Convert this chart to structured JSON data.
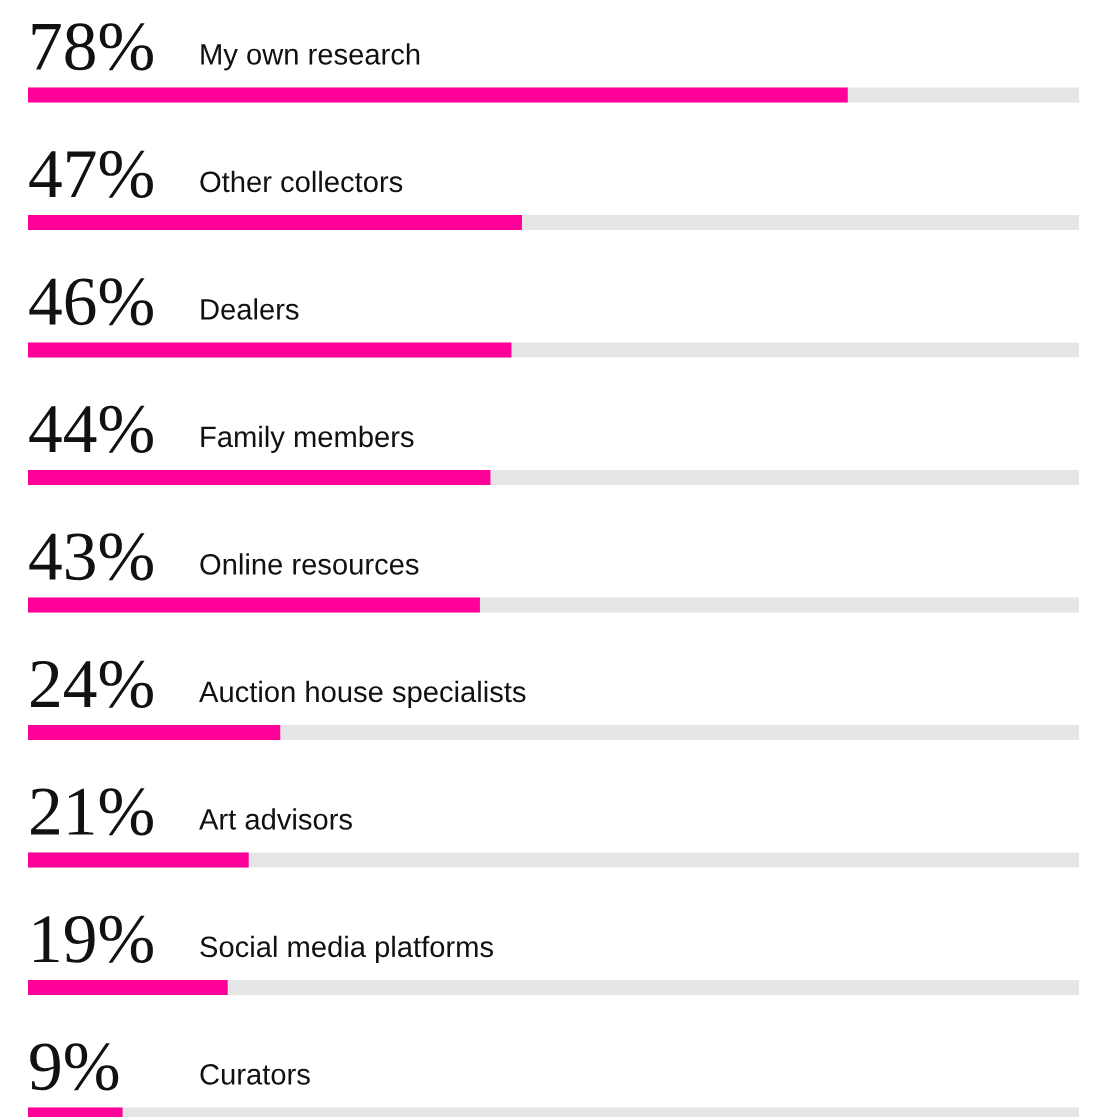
{
  "chart_data": {
    "type": "bar",
    "orientation": "horizontal",
    "categories": [
      "My own research",
      "Other collectors",
      "Dealers",
      "Family members",
      "Online resources",
      "Auction house specialists",
      "Art advisors",
      "Social media platforms",
      "Curators"
    ],
    "values": [
      78,
      47,
      46,
      44,
      43,
      24,
      21,
      19,
      9
    ],
    "value_labels": [
      "78%",
      "47%",
      "46%",
      "44%",
      "43%",
      "24%",
      "21%",
      "19%",
      "9%"
    ],
    "color": "#ff0099",
    "xlim": [
      0,
      100
    ]
  }
}
